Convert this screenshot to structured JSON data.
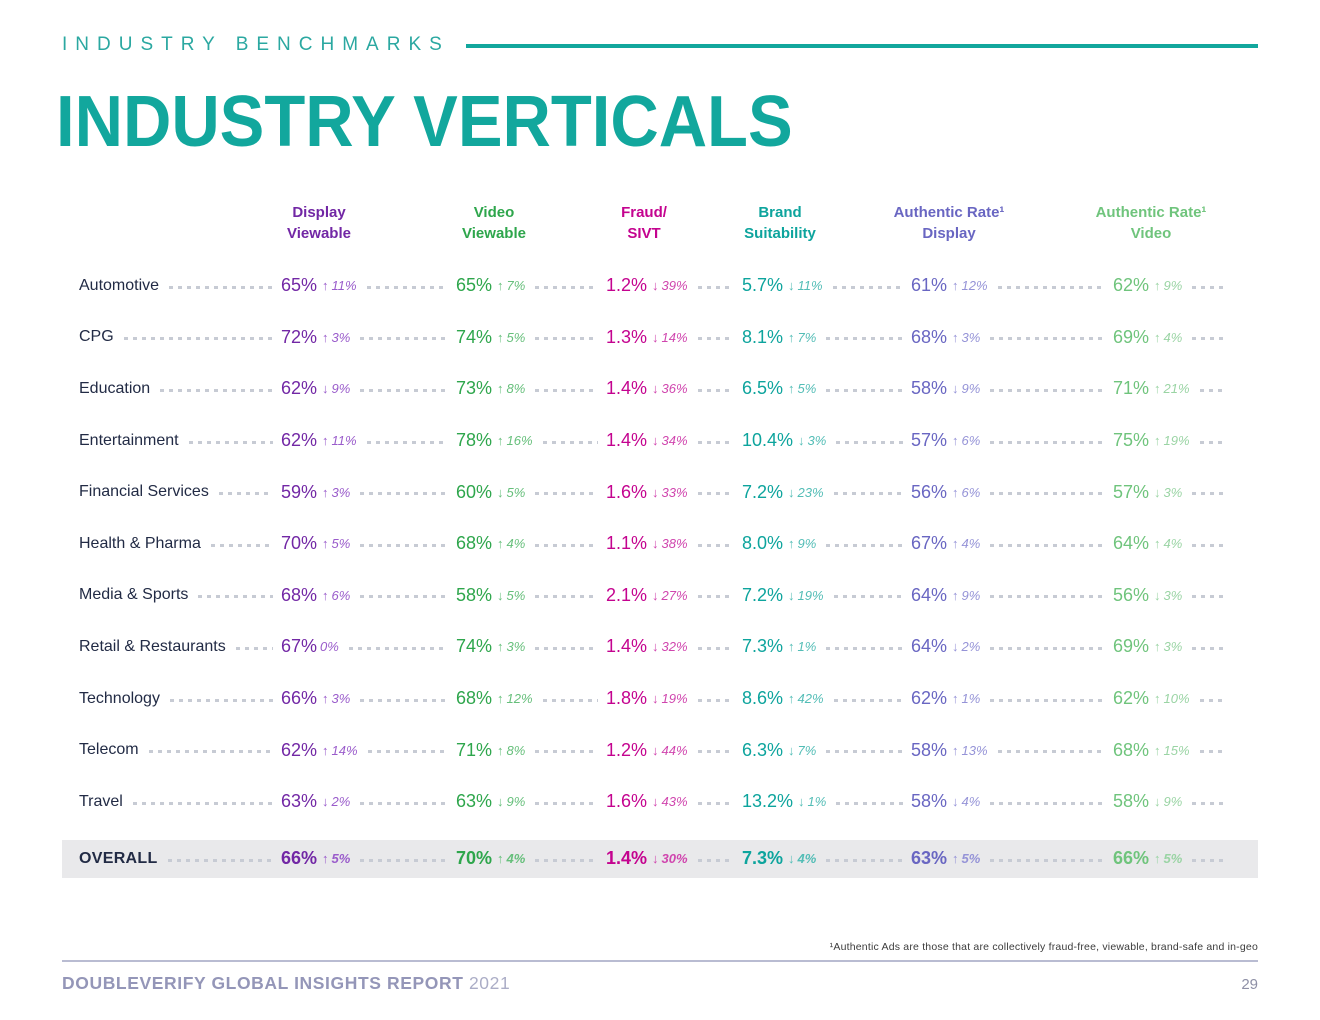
{
  "page": {
    "eyebrow": "INDUSTRY BENCHMARKS",
    "title": "INDUSTRY VERTICALS",
    "footnote": "¹Authentic Ads are those that are collectively fraud-free, viewable, brand-safe and in-geo",
    "footer": {
      "report": "DOUBLEVERIFY GLOBAL INSIGHTS REPORT",
      "year": "2021",
      "page_number": "29"
    }
  },
  "colors": {
    "brand_teal": "#12A79D",
    "eyebrow_teal": "#2BA8A1",
    "label_navy": "#222B45",
    "leader_gray": "#C7CBD4",
    "overall_band": "#E9E9EB",
    "footnote_gray": "#3C3C3C",
    "footer_rule": "#B9BCD2",
    "footer_text": "#9496B8",
    "footer_year": "#ABADC6",
    "page_number": "#8E90A6"
  },
  "table": {
    "columns": [
      {
        "id": "display-viewable",
        "label_line1": "Display",
        "label_line2": "Viewable",
        "color": "#7227A5",
        "delta_color": "#9A5CCB"
      },
      {
        "id": "video-viewable",
        "label_line1": "Video",
        "label_line2": "Viewable",
        "color": "#2EA64C",
        "delta_color": "#66BF7B"
      },
      {
        "id": "fraud-sivt",
        "label_line1": "Fraud/",
        "label_line2": "SIVT",
        "color": "#C4038F",
        "delta_color": "#D045AE"
      },
      {
        "id": "brand-suitability",
        "label_line1": "Brand",
        "label_line2": "Suitability",
        "color": "#0DA49D",
        "delta_color": "#53BDB6"
      },
      {
        "id": "authentic-rate-display",
        "label_line1": "Authentic Rate¹",
        "label_line2": "Display",
        "color": "#6966C2",
        "delta_color": "#9593D7"
      },
      {
        "id": "authentic-rate-video",
        "label_line1": "Authentic Rate¹",
        "label_line2": "Video",
        "color": "#6FC47C",
        "delta_color": "#9AD4A4"
      }
    ],
    "rows": [
      {
        "label": "Automotive",
        "overall": false,
        "cells": [
          {
            "v": "65%",
            "dir": "up",
            "delta": "11%"
          },
          {
            "v": "65%",
            "dir": "up",
            "delta": "7%"
          },
          {
            "v": "1.2%",
            "dir": "down",
            "delta": "39%"
          },
          {
            "v": "5.7%",
            "dir": "down",
            "delta": "11%"
          },
          {
            "v": "61%",
            "dir": "up",
            "delta": "12%"
          },
          {
            "v": "62%",
            "dir": "up",
            "delta": "9%"
          }
        ]
      },
      {
        "label": "CPG",
        "overall": false,
        "cells": [
          {
            "v": "72%",
            "dir": "up",
            "delta": "3%"
          },
          {
            "v": "74%",
            "dir": "up",
            "delta": "5%"
          },
          {
            "v": "1.3%",
            "dir": "down",
            "delta": "14%"
          },
          {
            "v": "8.1%",
            "dir": "up",
            "delta": "7%"
          },
          {
            "v": "68%",
            "dir": "up",
            "delta": "3%"
          },
          {
            "v": "69%",
            "dir": "up",
            "delta": "4%"
          }
        ]
      },
      {
        "label": "Education",
        "overall": false,
        "cells": [
          {
            "v": "62%",
            "dir": "down",
            "delta": "9%"
          },
          {
            "v": "73%",
            "dir": "up",
            "delta": "8%"
          },
          {
            "v": "1.4%",
            "dir": "down",
            "delta": "36%"
          },
          {
            "v": "6.5%",
            "dir": "up",
            "delta": "5%"
          },
          {
            "v": "58%",
            "dir": "down",
            "delta": "9%"
          },
          {
            "v": "71%",
            "dir": "up",
            "delta": "21%"
          }
        ]
      },
      {
        "label": "Entertainment",
        "overall": false,
        "cells": [
          {
            "v": "62%",
            "dir": "up",
            "delta": "11%"
          },
          {
            "v": "78%",
            "dir": "up",
            "delta": "16%"
          },
          {
            "v": "1.4%",
            "dir": "down",
            "delta": "34%"
          },
          {
            "v": "10.4%",
            "dir": "down",
            "delta": "3%"
          },
          {
            "v": "57%",
            "dir": "up",
            "delta": "6%"
          },
          {
            "v": "75%",
            "dir": "up",
            "delta": "19%"
          }
        ]
      },
      {
        "label": "Financial Services",
        "overall": false,
        "cells": [
          {
            "v": "59%",
            "dir": "up",
            "delta": "3%"
          },
          {
            "v": "60%",
            "dir": "down",
            "delta": "5%"
          },
          {
            "v": "1.6%",
            "dir": "down",
            "delta": "33%"
          },
          {
            "v": "7.2%",
            "dir": "down",
            "delta": "23%"
          },
          {
            "v": "56%",
            "dir": "up",
            "delta": "6%"
          },
          {
            "v": "57%",
            "dir": "down",
            "delta": "3%"
          }
        ]
      },
      {
        "label": "Health & Pharma",
        "overall": false,
        "cells": [
          {
            "v": "70%",
            "dir": "up",
            "delta": "5%"
          },
          {
            "v": "68%",
            "dir": "up",
            "delta": "4%"
          },
          {
            "v": "1.1%",
            "dir": "down",
            "delta": "38%"
          },
          {
            "v": "8.0%",
            "dir": "up",
            "delta": "9%"
          },
          {
            "v": "67%",
            "dir": "up",
            "delta": "4%"
          },
          {
            "v": "64%",
            "dir": "up",
            "delta": "4%"
          }
        ]
      },
      {
        "label": "Media & Sports",
        "overall": false,
        "cells": [
          {
            "v": "68%",
            "dir": "up",
            "delta": "6%"
          },
          {
            "v": "58%",
            "dir": "down",
            "delta": "5%"
          },
          {
            "v": "2.1%",
            "dir": "down",
            "delta": "27%"
          },
          {
            "v": "7.2%",
            "dir": "down",
            "delta": "19%"
          },
          {
            "v": "64%",
            "dir": "up",
            "delta": "9%"
          },
          {
            "v": "56%",
            "dir": "down",
            "delta": "3%"
          }
        ]
      },
      {
        "label": "Retail & Restaurants",
        "overall": false,
        "cells": [
          {
            "v": "67%",
            "dir": "none",
            "delta": "0%"
          },
          {
            "v": "74%",
            "dir": "up",
            "delta": "3%"
          },
          {
            "v": "1.4%",
            "dir": "down",
            "delta": "32%"
          },
          {
            "v": "7.3%",
            "dir": "up",
            "delta": "1%"
          },
          {
            "v": "64%",
            "dir": "down",
            "delta": "2%"
          },
          {
            "v": "69%",
            "dir": "up",
            "delta": "3%"
          }
        ]
      },
      {
        "label": "Technology",
        "overall": false,
        "cells": [
          {
            "v": "66%",
            "dir": "up",
            "delta": "3%"
          },
          {
            "v": "68%",
            "dir": "up",
            "delta": "12%"
          },
          {
            "v": "1.8%",
            "dir": "down",
            "delta": "19%"
          },
          {
            "v": "8.6%",
            "dir": "up",
            "delta": "42%"
          },
          {
            "v": "62%",
            "dir": "up",
            "delta": "1%"
          },
          {
            "v": "62%",
            "dir": "up",
            "delta": "10%"
          }
        ]
      },
      {
        "label": "Telecom",
        "overall": false,
        "cells": [
          {
            "v": "62%",
            "dir": "up",
            "delta": "14%"
          },
          {
            "v": "71%",
            "dir": "up",
            "delta": "8%"
          },
          {
            "v": "1.2%",
            "dir": "down",
            "delta": "44%"
          },
          {
            "v": "6.3%",
            "dir": "down",
            "delta": "7%"
          },
          {
            "v": "58%",
            "dir": "up",
            "delta": "13%"
          },
          {
            "v": "68%",
            "dir": "up",
            "delta": "15%"
          }
        ]
      },
      {
        "label": "Travel",
        "overall": false,
        "cells": [
          {
            "v": "63%",
            "dir": "down",
            "delta": "2%"
          },
          {
            "v": "63%",
            "dir": "down",
            "delta": "9%"
          },
          {
            "v": "1.6%",
            "dir": "down",
            "delta": "43%"
          },
          {
            "v": "13.2%",
            "dir": "down",
            "delta": "1%"
          },
          {
            "v": "58%",
            "dir": "down",
            "delta": "4%"
          },
          {
            "v": "58%",
            "dir": "down",
            "delta": "9%"
          }
        ]
      },
      {
        "label": "OVERALL",
        "overall": true,
        "cells": [
          {
            "v": "66%",
            "dir": "up",
            "delta": "5%"
          },
          {
            "v": "70%",
            "dir": "up",
            "delta": "4%"
          },
          {
            "v": "1.4%",
            "dir": "down",
            "delta": "30%"
          },
          {
            "v": "7.3%",
            "dir": "down",
            "delta": "4%"
          },
          {
            "v": "63%",
            "dir": "up",
            "delta": "5%"
          },
          {
            "v": "66%",
            "dir": "up",
            "delta": "5%"
          }
        ]
      }
    ]
  }
}
